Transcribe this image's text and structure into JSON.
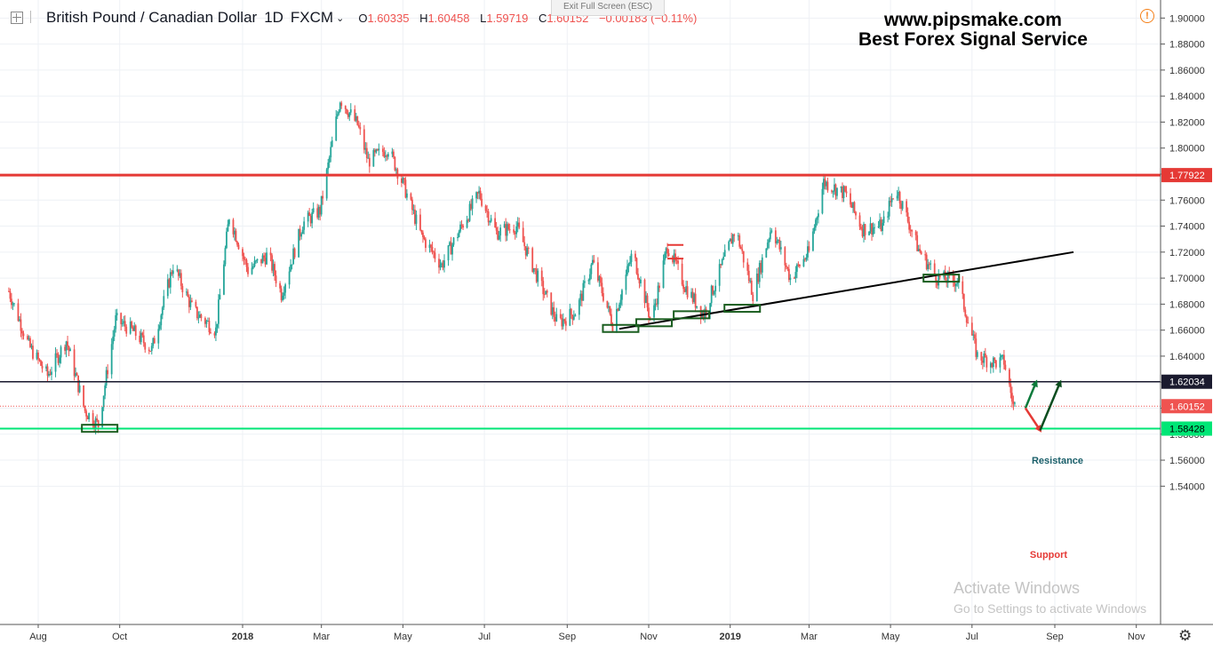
{
  "header": {
    "symbol": "British Pound / Canadian Dollar",
    "interval": "1D",
    "exchange": "FXCM",
    "open_label": "O",
    "open": "1.60335",
    "high_label": "H",
    "high": "1.60458",
    "low_label": "L",
    "low": "1.59719",
    "close_label": "C",
    "close": "1.60152",
    "change": "−0.00183 (−0.11%)"
  },
  "fullscreen_hint": "Exit Full Screen (ESC)",
  "watermark": {
    "line1": "www.pipsmake.com",
    "line2": "Best Forex Signal Service"
  },
  "activation": {
    "line1": "Activate Windows",
    "line2": "Go to Settings to activate Windows"
  },
  "annotations": {
    "resistance": "Resistance",
    "support": "Support"
  },
  "colors": {
    "up": "#26a69a",
    "down": "#ef5350",
    "resistance_line": "#e53935",
    "mid_line": "#1a1a2e",
    "support_line": "#00e676",
    "box": "#1b5e20"
  },
  "chart_data": {
    "type": "candlestick",
    "title": "British Pound / Canadian Dollar, 1D, FXCM",
    "ylim": [
      1.53,
      1.905
    ],
    "y_ticks": [
      1.54,
      1.56,
      1.58,
      1.6,
      1.62,
      1.64,
      1.66,
      1.68,
      1.7,
      1.72,
      1.74,
      1.76,
      1.78,
      1.8,
      1.82,
      1.84,
      1.86,
      1.88,
      1.9
    ],
    "x_ticks": [
      {
        "label": "Aug",
        "date": "2017-08-01"
      },
      {
        "label": "Oct",
        "date": "2017-10-01"
      },
      {
        "label": "2018",
        "date": "2018-01-01"
      },
      {
        "label": "Mar",
        "date": "2018-03-01"
      },
      {
        "label": "May",
        "date": "2018-05-01"
      },
      {
        "label": "Jul",
        "date": "2018-07-01"
      },
      {
        "label": "Sep",
        "date": "2018-09-01"
      },
      {
        "label": "Nov",
        "date": "2018-11-01"
      },
      {
        "label": "2019",
        "date": "2019-01-01"
      },
      {
        "label": "Mar",
        "date": "2019-03-01"
      },
      {
        "label": "May",
        "date": "2019-05-01"
      },
      {
        "label": "Jul",
        "date": "2019-07-01"
      },
      {
        "label": "Sep",
        "date": "2019-09-01"
      },
      {
        "label": "Nov",
        "date": "2019-11-01"
      }
    ],
    "price_path": [
      [
        "2017-07-10",
        1.69
      ],
      [
        "2017-07-25",
        1.648
      ],
      [
        "2017-08-08",
        1.625
      ],
      [
        "2017-08-22",
        1.652
      ],
      [
        "2017-09-05",
        1.598
      ],
      [
        "2017-09-15",
        1.587
      ],
      [
        "2017-09-28",
        1.668
      ],
      [
        "2017-10-10",
        1.66
      ],
      [
        "2017-10-25",
        1.645
      ],
      [
        "2017-11-10",
        1.71
      ],
      [
        "2017-11-25",
        1.675
      ],
      [
        "2017-12-12",
        1.66
      ],
      [
        "2017-12-22",
        1.748
      ],
      [
        "2018-01-05",
        1.706
      ],
      [
        "2018-01-20",
        1.718
      ],
      [
        "2018-01-30",
        1.688
      ],
      [
        "2018-02-15",
        1.742
      ],
      [
        "2018-02-28",
        1.752
      ],
      [
        "2018-03-15",
        1.838
      ],
      [
        "2018-03-28",
        1.818
      ],
      [
        "2018-04-05",
        1.79
      ],
      [
        "2018-04-20",
        1.8
      ],
      [
        "2018-05-02",
        1.77
      ],
      [
        "2018-05-15",
        1.732
      ],
      [
        "2018-05-30",
        1.71
      ],
      [
        "2018-06-15",
        1.742
      ],
      [
        "2018-06-27",
        1.765
      ],
      [
        "2018-07-10",
        1.735
      ],
      [
        "2018-07-25",
        1.74
      ],
      [
        "2018-08-10",
        1.7
      ],
      [
        "2018-08-25",
        1.665
      ],
      [
        "2018-09-08",
        1.675
      ],
      [
        "2018-09-20",
        1.712
      ],
      [
        "2018-10-05",
        1.665
      ],
      [
        "2018-10-20",
        1.72
      ],
      [
        "2018-11-03",
        1.666
      ],
      [
        "2018-11-15",
        1.725
      ],
      [
        "2018-11-28",
        1.694
      ],
      [
        "2018-12-12",
        1.672
      ],
      [
        "2019-01-05",
        1.738
      ],
      [
        "2019-01-18",
        1.688
      ],
      [
        "2019-02-01",
        1.74
      ],
      [
        "2019-02-15",
        1.7
      ],
      [
        "2019-03-01",
        1.72
      ],
      [
        "2019-03-12",
        1.774
      ],
      [
        "2019-03-28",
        1.765
      ],
      [
        "2019-04-10",
        1.738
      ],
      [
        "2019-04-25",
        1.74
      ],
      [
        "2019-05-05",
        1.77
      ],
      [
        "2019-05-22",
        1.722
      ],
      [
        "2019-06-05",
        1.7
      ],
      [
        "2019-06-20",
        1.698
      ],
      [
        "2019-07-05",
        1.64
      ],
      [
        "2019-07-18",
        1.635
      ],
      [
        "2019-07-25",
        1.636
      ],
      [
        "2019-08-01",
        1.602
      ],
      [
        "2019-08-05",
        1.601
      ]
    ],
    "levels": [
      {
        "price": 1.77922,
        "label": "1.77922",
        "role": "resistance"
      },
      {
        "price": 1.62034,
        "label": "1.62034",
        "role": "mid"
      },
      {
        "price": 1.60152,
        "label": "1.60152",
        "role": "last"
      },
      {
        "price": 1.58428,
        "label": "1.58428",
        "role": "support"
      }
    ],
    "trendline": {
      "from": [
        "2018-10-10",
        1.661
      ],
      "to": [
        "2019-09-15",
        1.72
      ]
    },
    "markers": [
      {
        "date": "2017-09-16",
        "price": 1.5845
      },
      {
        "date": "2018-10-11",
        "price": 1.6613
      },
      {
        "date": "2018-11-05",
        "price": 1.6657
      },
      {
        "date": "2018-12-03",
        "price": 1.6718
      },
      {
        "date": "2019-01-10",
        "price": 1.6768
      },
      {
        "date": "2019-06-08",
        "price": 1.7
      }
    ],
    "red_ticks": [
      {
        "date": "2018-11-21",
        "price": 1.7255
      },
      {
        "date": "2018-11-21",
        "price": 1.715
      }
    ],
    "projection": {
      "start": [
        "2019-08-10",
        1.6
      ],
      "resistance_arrow_1": [
        "2019-08-18",
        1.62
      ],
      "support_point": [
        "2019-08-21",
        1.583
      ],
      "resistance_arrow_2": [
        "2019-09-05",
        1.62
      ]
    }
  }
}
